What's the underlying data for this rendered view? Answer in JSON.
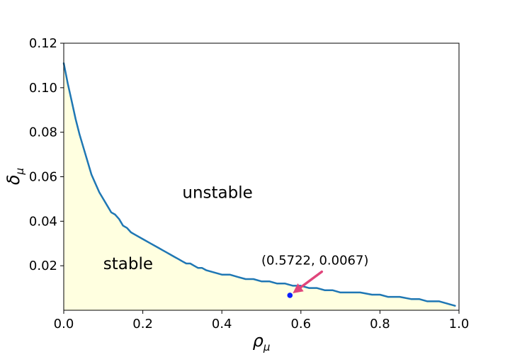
{
  "chart_data": {
    "type": "area",
    "xlabel": {
      "main": "ρ",
      "sub": "μ"
    },
    "ylabel": {
      "main": "δ",
      "sub": "μ"
    },
    "xlim": [
      0.0,
      1.0
    ],
    "ylim": [
      0.0,
      0.12
    ],
    "xticks": [
      0.0,
      0.2,
      0.4,
      0.6,
      0.8,
      1.0
    ],
    "xtick_labels": [
      "0.0",
      "0.2",
      "0.4",
      "0.6",
      "0.8",
      "1.0"
    ],
    "yticks": [
      0.02,
      0.04,
      0.06,
      0.08,
      0.1,
      0.12
    ],
    "ytick_labels": [
      "0.02",
      "0.04",
      "0.06",
      "0.08",
      "0.10",
      "0.12"
    ],
    "grid": false,
    "boundary": {
      "color": "#1f77b4",
      "fill_color": "#ffffe0",
      "x": [
        0.0,
        0.01,
        0.02,
        0.03,
        0.04,
        0.05,
        0.06,
        0.07,
        0.08,
        0.09,
        0.1,
        0.11,
        0.12,
        0.13,
        0.14,
        0.15,
        0.16,
        0.17,
        0.18,
        0.2,
        0.22,
        0.24,
        0.25,
        0.26,
        0.27,
        0.28,
        0.29,
        0.3,
        0.31,
        0.32,
        0.33,
        0.34,
        0.35,
        0.36,
        0.38,
        0.4,
        0.42,
        0.44,
        0.46,
        0.48,
        0.5,
        0.52,
        0.54,
        0.56,
        0.58,
        0.6,
        0.62,
        0.64,
        0.66,
        0.68,
        0.7,
        0.72,
        0.75,
        0.78,
        0.8,
        0.82,
        0.85,
        0.88,
        0.9,
        0.92,
        0.95,
        0.97,
        0.99
      ],
      "y": [
        0.111,
        0.102,
        0.094,
        0.086,
        0.079,
        0.073,
        0.067,
        0.061,
        0.057,
        0.053,
        0.05,
        0.047,
        0.044,
        0.043,
        0.041,
        0.038,
        0.037,
        0.035,
        0.034,
        0.032,
        0.03,
        0.028,
        0.027,
        0.026,
        0.025,
        0.024,
        0.023,
        0.022,
        0.021,
        0.021,
        0.02,
        0.019,
        0.019,
        0.018,
        0.017,
        0.016,
        0.016,
        0.015,
        0.014,
        0.014,
        0.013,
        0.013,
        0.012,
        0.012,
        0.011,
        0.011,
        0.01,
        0.01,
        0.009,
        0.009,
        0.008,
        0.008,
        0.008,
        0.007,
        0.007,
        0.006,
        0.006,
        0.005,
        0.005,
        0.004,
        0.004,
        0.003,
        0.002
      ]
    },
    "region_labels": [
      {
        "text": "unstable",
        "x": 0.3,
        "y": 0.0505
      },
      {
        "text": "stable",
        "x": 0.1,
        "y": 0.0185
      }
    ],
    "point": {
      "x": 0.5722,
      "y": 0.0067,
      "color": "#0a1fff"
    },
    "annotation": {
      "text": "(0.5722, 0.0067)",
      "text_x": 0.5,
      "text_y": 0.0205,
      "arrow_color": "#e0457b"
    }
  }
}
